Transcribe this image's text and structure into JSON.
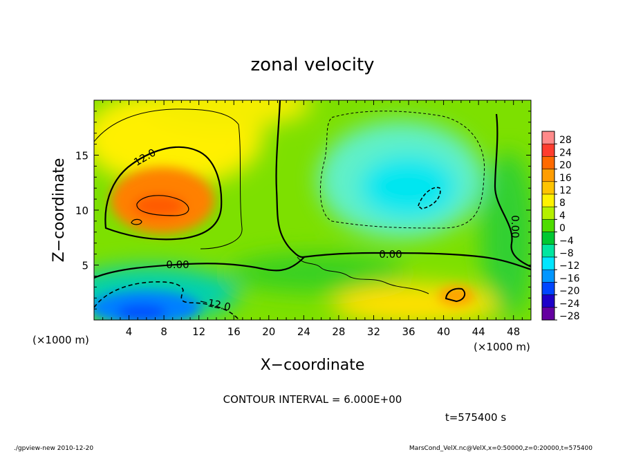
{
  "chart_data": {
    "type": "heatmap",
    "title": "zonal velocity",
    "xlabel": "X−coordinate",
    "ylabel": "Z−coordinate",
    "x_unit_note_left": "(×1000 m)",
    "x_unit_note_right": "(×1000 m)",
    "xlim": [
      0,
      50
    ],
    "ylim": [
      0,
      20
    ],
    "x_ticks": [
      4,
      8,
      12,
      16,
      20,
      24,
      28,
      32,
      36,
      40,
      44,
      48
    ],
    "y_ticks": [
      5,
      10,
      15
    ],
    "colorbar": {
      "levels": [
        -28,
        -24,
        -20,
        -16,
        -12,
        -8,
        -4,
        0,
        4,
        8,
        12,
        16,
        20,
        24,
        28
      ],
      "labels": [
        "28",
        "24",
        "20",
        "16",
        "12",
        "8",
        "4",
        "0",
        "−4",
        "−8",
        "−12",
        "−16",
        "−20",
        "−24",
        "−28"
      ],
      "colors": [
        "#ff8a8a",
        "#ff3d2e",
        "#ff6a00",
        "#ff9d00",
        "#ffc400",
        "#fff200",
        "#b4f000",
        "#4fdc00",
        "#00c832",
        "#00e6a0",
        "#00e6ff",
        "#0096ff",
        "#0046ff",
        "#1e00c8",
        "#6400a0"
      ]
    },
    "contour_interval_text": "CONTOUR INTERVAL = 6.000E+00",
    "contour_labels": [
      "12.0",
      "0.00",
      "0.00",
      "0.00",
      "−12.0"
    ],
    "time_text": "t=575400 s",
    "regions": [
      {
        "name": "positive-max",
        "x": 8,
        "y": 10.5,
        "value": 20
      },
      {
        "name": "negative-min-lower-left",
        "x": 8,
        "y": 1.5,
        "value": -20
      },
      {
        "name": "negative-upper-right",
        "x": 36,
        "y": 12,
        "value": -10
      },
      {
        "name": "positive-lower-right",
        "x": 42,
        "y": 2,
        "value": 14
      }
    ]
  },
  "footer": {
    "left": "./gpview-new  2010-12-20",
    "right": "MarsCond_VelX.nc@VelX,x=0:50000,z=0:20000,t=575400"
  }
}
